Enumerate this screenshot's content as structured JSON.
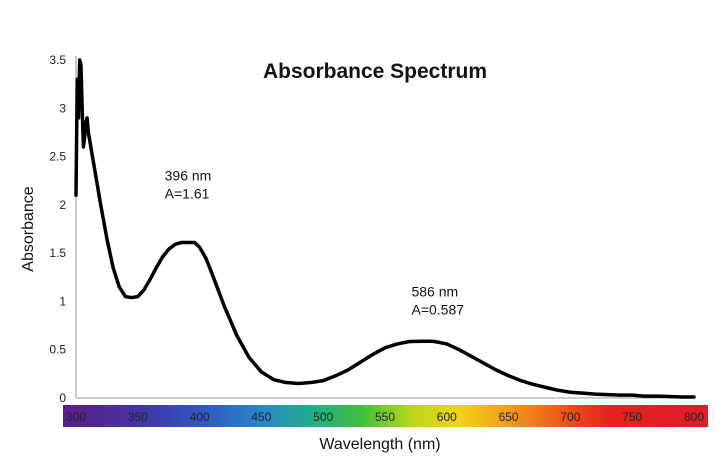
{
  "chart_data": {
    "type": "line",
    "title": "Absorbance Spectrum",
    "xlabel": "Wavelength (nm)",
    "ylabel": "Absorbance",
    "xlim": [
      300,
      800
    ],
    "ylim": [
      0,
      3.5
    ],
    "xticks": [
      "300",
      "350",
      "400",
      "450",
      "500",
      "550",
      "600",
      "650",
      "700",
      "750",
      "800"
    ],
    "yticks": [
      "0",
      "0.5",
      "1",
      "1.5",
      "2",
      "2.5",
      "3",
      "3.5"
    ],
    "grid": false,
    "legend": "none",
    "spectrum_bar": {
      "colors": [
        "#5b1f8a",
        "#4b2c9a",
        "#3a3fb0",
        "#2f5fc4",
        "#2a86c9",
        "#1fae8c",
        "#3fbf3a",
        "#b5d81c",
        "#f1d21a",
        "#f39a1c",
        "#ef5a1d",
        "#e5231f",
        "#e11f26",
        "#e01d2a"
      ]
    },
    "series": [
      {
        "color": "#000000",
        "x": [
          300,
          301,
          302,
          303,
          304,
          305,
          306,
          307,
          308,
          309,
          310,
          312,
          314,
          316,
          320,
          325,
          330,
          335,
          340,
          345,
          350,
          355,
          360,
          365,
          370,
          375,
          380,
          385,
          390,
          396,
          400,
          405,
          410,
          415,
          420,
          430,
          440,
          450,
          460,
          470,
          480,
          490,
          500,
          510,
          520,
          530,
          540,
          550,
          560,
          570,
          580,
          586,
          590,
          600,
          610,
          620,
          630,
          640,
          650,
          660,
          670,
          680,
          690,
          700,
          710,
          720,
          730,
          740,
          750,
          760,
          770,
          780,
          790,
          800
        ],
        "y": [
          2.1,
          3.3,
          2.9,
          3.5,
          3.45,
          3.0,
          2.6,
          2.7,
          2.85,
          2.9,
          2.75,
          2.6,
          2.45,
          2.3,
          2.0,
          1.65,
          1.35,
          1.15,
          1.05,
          1.04,
          1.05,
          1.12,
          1.23,
          1.35,
          1.46,
          1.54,
          1.59,
          1.61,
          1.61,
          1.61,
          1.56,
          1.45,
          1.29,
          1.12,
          0.95,
          0.65,
          0.42,
          0.27,
          0.19,
          0.16,
          0.15,
          0.16,
          0.18,
          0.23,
          0.29,
          0.37,
          0.45,
          0.52,
          0.56,
          0.585,
          0.587,
          0.587,
          0.585,
          0.56,
          0.5,
          0.43,
          0.36,
          0.29,
          0.23,
          0.18,
          0.14,
          0.11,
          0.08,
          0.06,
          0.05,
          0.04,
          0.035,
          0.03,
          0.03,
          0.02,
          0.02,
          0.015,
          0.01,
          0.01
        ]
      }
    ],
    "annotations": [
      {
        "lines": [
          "396 nm",
          "A=1.61"
        ],
        "x": 396,
        "y": 1.61
      },
      {
        "lines": [
          "586 nm",
          "A=0.587"
        ],
        "x": 586,
        "y": 0.587
      }
    ]
  }
}
